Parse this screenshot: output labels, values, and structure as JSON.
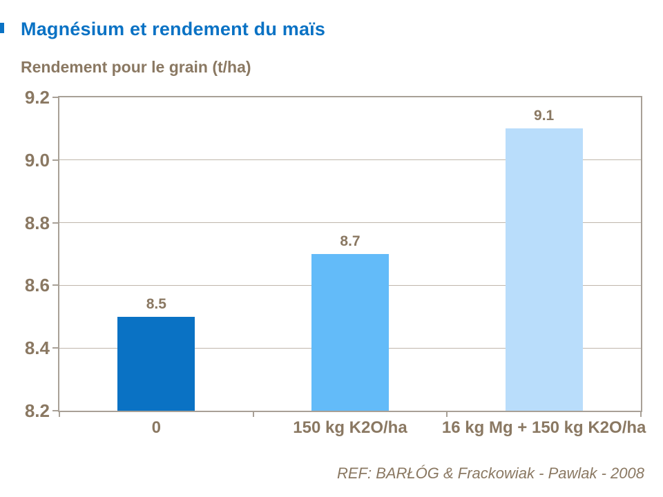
{
  "page": {
    "title": "Magnésium et rendement du maïs",
    "subtitle": "Rendement pour le grain (t/ha)",
    "reference": "REF:  BARŁÓG & Frackowiak - Pawlak - 2008"
  },
  "colors": {
    "title_blue": "#0A72C4",
    "text_brown": "#8A7862",
    "axis_line": "#A8A096",
    "gridline": "#BFB6AB"
  },
  "chart_data": {
    "type": "bar",
    "title": "Magnésium et rendement du maïs",
    "ylabel": "Rendement pour le grain (t/ha)",
    "xlabel": "",
    "categories": [
      "0",
      "150 kg K2O/ha",
      "16 kg Mg + 150 kg K2O/ha"
    ],
    "values": [
      8.5,
      8.7,
      9.1
    ],
    "value_labels": [
      "8.5",
      "8.7",
      "9.1"
    ],
    "bar_colors": [
      "#0A72C4",
      "#63BBF9",
      "#B9DDFB"
    ],
    "ylim": [
      8.2,
      9.2
    ],
    "yticks": [
      8.2,
      8.4,
      8.6,
      8.8,
      9.0,
      9.2
    ],
    "ytick_labels": [
      "8.2",
      "8.4",
      "8.6",
      "8.8",
      "9.0",
      "9.2"
    ],
    "grid": true,
    "legend": false,
    "annotation": "REF:  BARŁÓG & Frackowiak - Pawlak - 2008"
  }
}
